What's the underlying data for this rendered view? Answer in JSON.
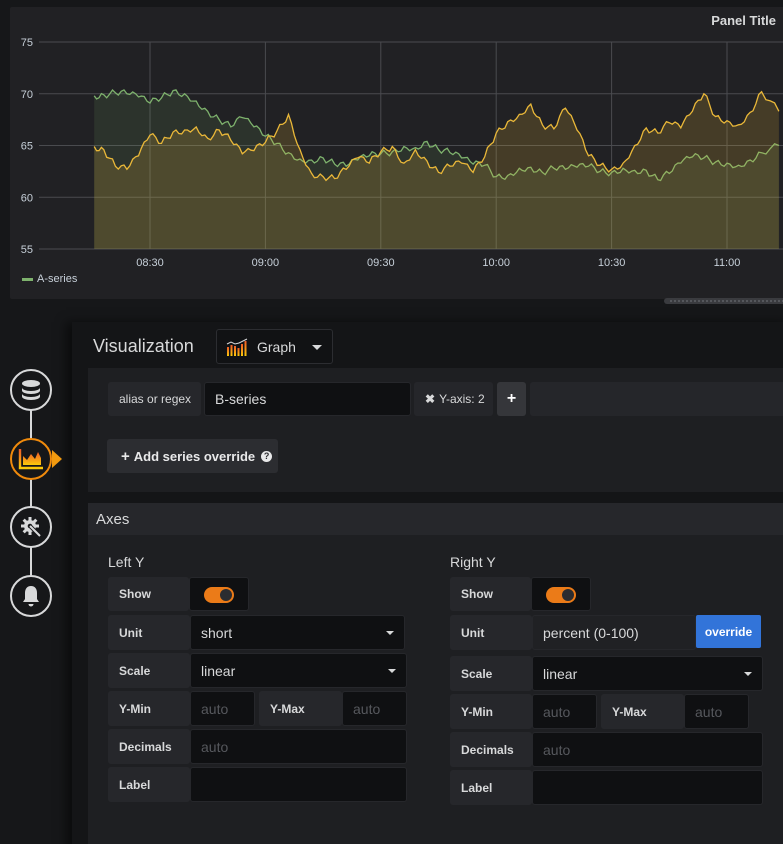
{
  "panel": {
    "title": "Panel Title",
    "legend": [
      {
        "label": "A-series",
        "color": "#7eb26d"
      }
    ]
  },
  "chart_data": {
    "type": "line",
    "title": "Panel Title",
    "xlabel": "",
    "ylabel": "",
    "x_ticks": [
      "08:30",
      "09:00",
      "09:30",
      "10:00",
      "10:30",
      "11:00"
    ],
    "y_ticks": [
      55,
      60,
      65,
      70,
      75
    ],
    "ylim": [
      55,
      75
    ],
    "grid": true,
    "legend_position": "bottom-left",
    "x_minutes_from_0800": [
      15.5,
      18,
      21,
      24,
      27,
      30,
      33,
      36,
      39,
      42,
      45,
      48,
      51,
      54,
      57,
      60,
      63,
      66,
      69,
      72,
      75,
      78,
      81,
      84,
      87,
      90,
      93,
      96,
      99,
      102,
      105,
      108,
      111,
      114,
      117,
      120,
      123,
      126,
      129,
      132,
      135,
      138,
      141,
      144,
      147,
      150,
      153,
      156,
      159,
      162,
      165,
      168,
      171,
      174,
      177,
      180,
      183,
      186,
      189,
      193.5
    ],
    "series": [
      {
        "name": "A-series",
        "color": "#7eb26d",
        "fill": true,
        "values": [
          69.8,
          69.9,
          70.1,
          70.0,
          69.7,
          69.1,
          69.6,
          70.3,
          70.0,
          69.3,
          68.3,
          67.5,
          66.8,
          67.7,
          66.8,
          65.9,
          65.2,
          64.3,
          63.7,
          63.6,
          63.8,
          63.2,
          63.0,
          63.6,
          64.0,
          64.2,
          64.4,
          64.9,
          64.8,
          65.4,
          64.6,
          64.3,
          63.8,
          63.2,
          63.1,
          62.0,
          62.1,
          62.8,
          62.9,
          62.4,
          62.8,
          62.7,
          62.9,
          63.0,
          62.5,
          62.4,
          62.8,
          62.6,
          62.6,
          61.7,
          62.3,
          63.3,
          63.9,
          63.8,
          63.4,
          63.3,
          63.1,
          63.6,
          64.3,
          65.0
        ]
      },
      {
        "name": "B-series",
        "color": "#eab839",
        "fill": true,
        "values": [
          64.9,
          64.6,
          63.0,
          62.7,
          64.0,
          66.0,
          65.2,
          66.3,
          66.5,
          66.8,
          65.7,
          66.5,
          65.5,
          64.2,
          64.5,
          65.3,
          66.4,
          68.0,
          64.6,
          62.3,
          62.0,
          61.8,
          62.7,
          63.8,
          63.3,
          64.4,
          64.9,
          63.3,
          64.6,
          63.5,
          62.4,
          63.0,
          63.3,
          62.4,
          63.9,
          66.2,
          67.3,
          68.0,
          69.0,
          67.0,
          66.6,
          68.6,
          66.5,
          64.0,
          63.1,
          62.7,
          63.3,
          65.0,
          66.7,
          66.2,
          67.2,
          66.7,
          68.3,
          70.0,
          67.8,
          67.4,
          67.0,
          68.2,
          70.2,
          68.3
        ]
      }
    ]
  },
  "sidebar": {
    "steps": [
      {
        "name": "queries",
        "icon": "database-icon",
        "active": false
      },
      {
        "name": "visualization",
        "icon": "chart-area-icon",
        "active": true
      },
      {
        "name": "general",
        "icon": "gear-wrench-icon",
        "active": false
      },
      {
        "name": "alert",
        "icon": "bell-icon",
        "active": false
      }
    ]
  },
  "visualization": {
    "label": "Visualization",
    "selected": "Graph"
  },
  "overrides": {
    "alias_label": "alias or regex",
    "alias_value": "B-series",
    "chip_label": "Y-axis: 2",
    "add_button": "Add series override"
  },
  "axes": {
    "title": "Axes",
    "left": {
      "title": "Left Y",
      "show_label": "Show",
      "show": true,
      "unit_label": "Unit",
      "unit": "short",
      "scale_label": "Scale",
      "scale": "linear",
      "ymin_label": "Y-Min",
      "ymin_placeholder": "auto",
      "ymax_label": "Y-Max",
      "ymax_placeholder": "auto",
      "decimals_label": "Decimals",
      "decimals_placeholder": "auto",
      "label_label": "Label",
      "label_value": ""
    },
    "right": {
      "title": "Right Y",
      "show_label": "Show",
      "show": true,
      "unit_label": "Unit",
      "unit": "percent (0-100)",
      "override_label": "override",
      "scale_label": "Scale",
      "scale": "linear",
      "ymin_label": "Y-Min",
      "ymin_placeholder": "auto",
      "ymax_label": "Y-Max",
      "ymax_placeholder": "auto",
      "decimals_label": "Decimals",
      "decimals_placeholder": "auto",
      "label_label": "Label",
      "label_value": ""
    }
  },
  "colors": {
    "accent_orange": "#eb7b18",
    "override_blue": "#3274d9",
    "series_green": "#7eb26d",
    "series_yellow": "#eab839"
  }
}
